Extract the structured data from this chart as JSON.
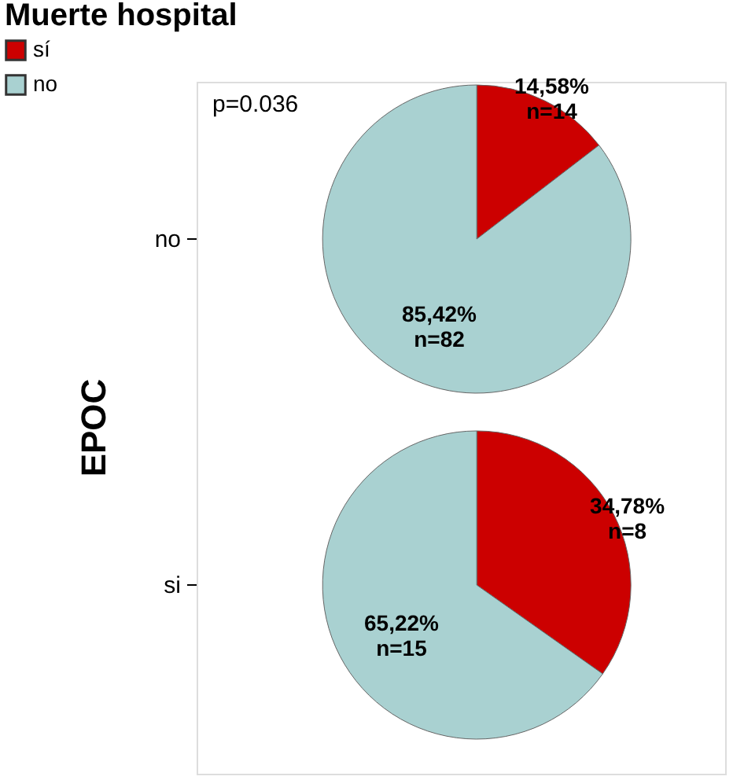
{
  "chart_data": {
    "type": "pie",
    "legend_title": "Muerte hospital",
    "legend": "top left",
    "ylabel": "EPOC",
    "categories": [
      "sí",
      "no"
    ],
    "colors": [
      "#cc0000",
      "#a9d1d1"
    ],
    "series": [
      {
        "name": "no",
        "values": [
          14.58,
          85.42
        ],
        "value_labels": [
          "14,58%\nn=14",
          "85,42%\nn=82"
        ]
      },
      {
        "name": "si",
        "values": [
          34.78,
          65.22
        ],
        "value_labels": [
          "34,78%\nn=8",
          "65,22%\nn=15"
        ]
      }
    ],
    "annotations": [
      "p=0.036"
    ]
  }
}
